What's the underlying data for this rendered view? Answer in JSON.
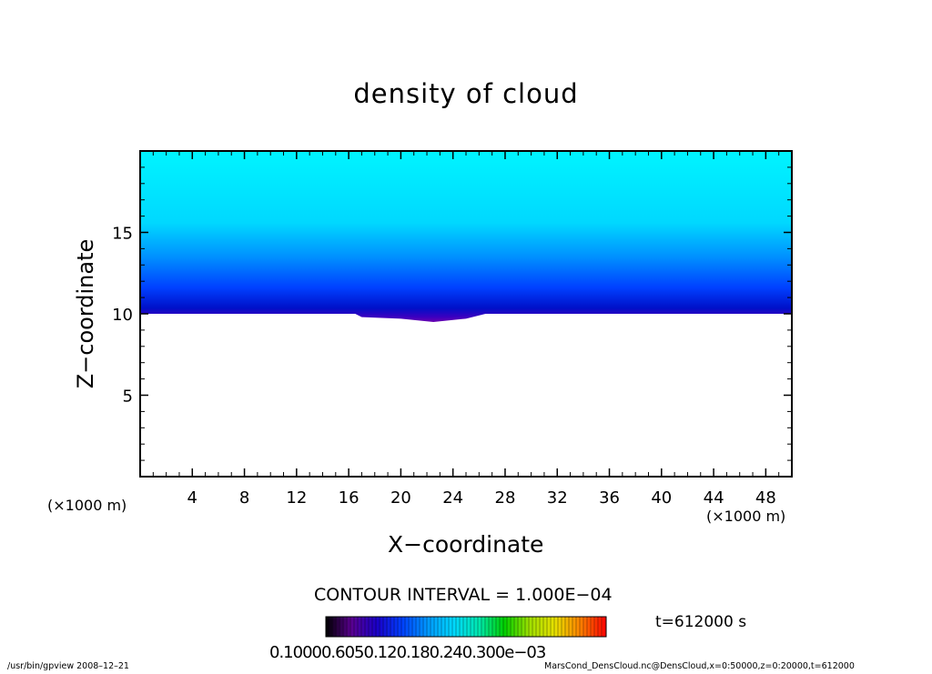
{
  "chart_data": {
    "type": "heatmap",
    "title": "density of cloud",
    "xlabel": "X−coordinate",
    "ylabel": "Z−coordinate",
    "x_unit_label": "(×1000 m)",
    "z_unit_label": "(×1000 m)",
    "xlim": [
      0,
      50
    ],
    "ylim": [
      0,
      20
    ],
    "x_ticks": [
      4,
      8,
      12,
      16,
      20,
      24,
      28,
      32,
      36,
      40,
      44,
      48
    ],
    "y_ticks": [
      5,
      10,
      15
    ],
    "contour_interval": "CONTOUR INTERVAL = 1.000E−04",
    "time_label": "t=612000 s",
    "colorbar_labels": "0.10000.6050.120.180.240.300e−03",
    "colorbar_colors": [
      "#000000",
      "#5a0090",
      "#1a00c8",
      "#0040ff",
      "#0099ff",
      "#00d8ff",
      "#00e8b0",
      "#00d000",
      "#a0e000",
      "#e8e000",
      "#ff8000",
      "#ff0000"
    ],
    "cloud_base_km": [
      10.0,
      10.0,
      10.0,
      9.8,
      9.7,
      9.5,
      9.7,
      10.0,
      10.0,
      10.0,
      10.0,
      10.0,
      10.0
    ],
    "cloud_base_x_km": [
      0,
      15,
      16.5,
      17,
      20,
      22.5,
      25,
      26.5,
      30,
      35,
      40,
      45,
      50
    ],
    "cloud_top_km": 20,
    "field_colors": {
      "base": "#6a00b0",
      "mid": "#0050ff",
      "top": "#00f0ff"
    }
  },
  "footer": {
    "left": "/usr/bin/gpview   2008–12–21",
    "right": "MarsCond_DensCloud.nc@DensCloud,x=0:50000,z=0:20000,t=612000"
  }
}
